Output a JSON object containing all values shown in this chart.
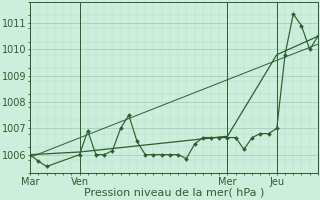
{
  "bg_color": "#cceedd",
  "grid_color_major": "#aaccbb",
  "grid_color_minor": "#bbddcc",
  "line_color": "#2d5e2d",
  "xlabel": "Pression niveau de la mer( hPa )",
  "xlabel_fontsize": 8,
  "ylim": [
    1005.3,
    1011.8
  ],
  "yticks": [
    1006,
    1007,
    1008,
    1009,
    1010,
    1011
  ],
  "xtick_labels": [
    "Mar",
    "Ven",
    "Mer",
    "Jeu"
  ],
  "xtick_positions": [
    0,
    18,
    72,
    90
  ],
  "vline_positions": [
    0,
    18,
    72,
    90
  ],
  "xlim": [
    0,
    105
  ],
  "series1_x": [
    0,
    3,
    6,
    18,
    21,
    24,
    27,
    30,
    33,
    36,
    39,
    42,
    45,
    48,
    51,
    54,
    57,
    60,
    63,
    66,
    69,
    72,
    75,
    78,
    81,
    84,
    87,
    90,
    93,
    96,
    99,
    102,
    105
  ],
  "series1_y": [
    1006.0,
    1005.75,
    1005.55,
    1006.0,
    1006.9,
    1006.0,
    1006.0,
    1006.15,
    1007.0,
    1007.5,
    1006.5,
    1006.0,
    1006.0,
    1006.0,
    1006.0,
    1006.0,
    1005.85,
    1006.4,
    1006.65,
    1006.65,
    1006.65,
    1006.65,
    1006.65,
    1006.2,
    1006.65,
    1006.8,
    1006.8,
    1007.0,
    1009.8,
    1011.35,
    1010.9,
    1010.0,
    1010.5
  ],
  "series2_x": [
    0,
    18,
    72,
    90,
    105
  ],
  "series2_y": [
    1006.0,
    1006.1,
    1006.7,
    1009.8,
    1010.5
  ],
  "series3_x": [
    0,
    105
  ],
  "series3_y": [
    1005.9,
    1010.2
  ]
}
